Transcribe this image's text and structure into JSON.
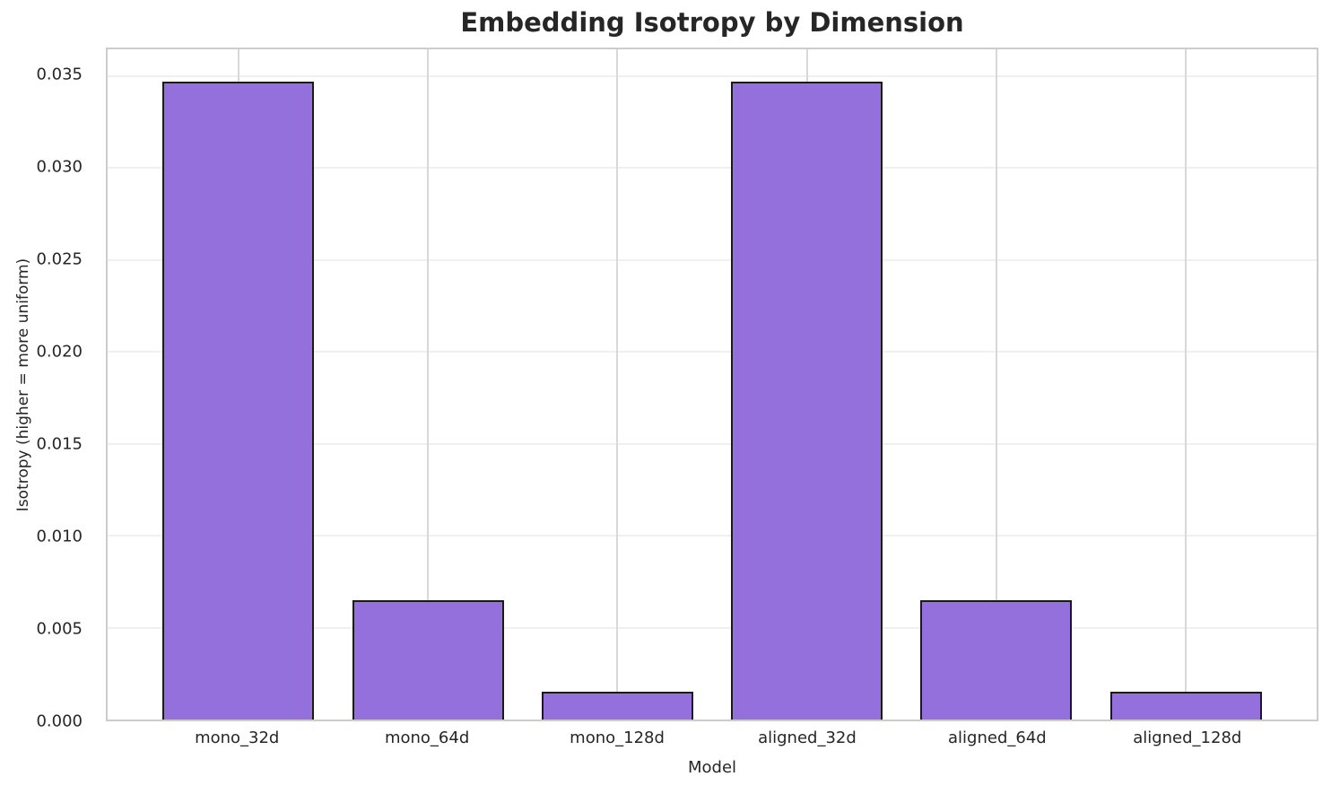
{
  "chart_data": {
    "type": "bar",
    "title": "Embedding Isotropy by Dimension",
    "xlabel": "Model",
    "ylabel": "Isotropy (higher = more uniform)",
    "categories": [
      "mono_32d",
      "mono_64d",
      "mono_128d",
      "aligned_32d",
      "aligned_64d",
      "aligned_128d"
    ],
    "values": [
      0.0347,
      0.0065,
      0.0015,
      0.0347,
      0.0065,
      0.0015
    ],
    "ylim": [
      0,
      0.03644
    ],
    "xlim": [
      -0.69,
      5.69
    ],
    "bar_width": 0.8,
    "yticks": [
      0.0,
      0.005,
      0.01,
      0.015,
      0.02,
      0.025,
      0.03,
      0.035
    ],
    "ytick_labels": [
      "0.000",
      "0.005",
      "0.010",
      "0.015",
      "0.020",
      "0.025",
      "0.030",
      "0.035"
    ],
    "grid": "both",
    "legend": "none",
    "colors": {
      "bar_fill": "#9370DB",
      "bar_edge": "#1a1a1a",
      "h_gridline": "#f0f0f0",
      "v_gridline": "#d8d8d8",
      "spine": "#cccccc",
      "text": "#262626"
    }
  }
}
